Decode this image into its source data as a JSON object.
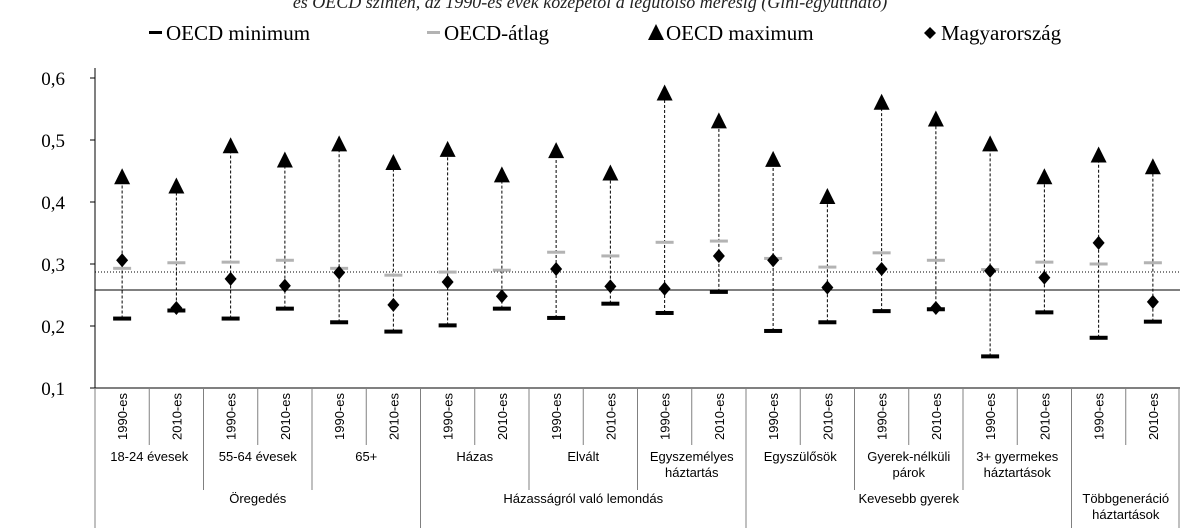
{
  "subtitle": "és OECD szinten, az 1990-es évek közepétől a legutolsó mérésig (Gini-együttható)",
  "legend": {
    "min": "OECD minimum",
    "avg": "OECD-átlag",
    "max": "OECD maximum",
    "hu": "Magyarország"
  },
  "colors": {
    "min": "#000000",
    "avg": "#b3b3b3",
    "max": "#000000",
    "hu": "#000000",
    "hu_ref_line": "#000000",
    "avg_ref_line": "#000000"
  },
  "chart_data": {
    "type": "scatter",
    "ylim": [
      0.1,
      0.6
    ],
    "yticks": [
      "0,1",
      "0,2",
      "0,3",
      "0,4",
      "0,5",
      "0,6"
    ],
    "reference_lines": {
      "hungary_latest": 0.258,
      "oecd_avg_latest": 0.287
    },
    "x": [
      "1990-es",
      "2010-es",
      "1990-es",
      "2010-es",
      "1990-es",
      "2010-es",
      "1990-es",
      "2010-es",
      "1990-es",
      "2010-es",
      "1990-es",
      "2010-es",
      "1990-es",
      "2010-es",
      "1990-es",
      "2010-es",
      "1990-es",
      "2010-es",
      "1990-es",
      "2010-es"
    ],
    "subgroups": [
      {
        "label": [
          "18-24 évesek"
        ],
        "span": 2
      },
      {
        "label": [
          "55-64 évesek"
        ],
        "span": 2
      },
      {
        "label": [
          "65+"
        ],
        "span": 2
      },
      {
        "label": [
          "Házas"
        ],
        "span": 2
      },
      {
        "label": [
          "Elvált"
        ],
        "span": 2
      },
      {
        "label": [
          "Egyszemélyes",
          "háztartás"
        ],
        "span": 2
      },
      {
        "label": [
          "Egyszülősök"
        ],
        "span": 2
      },
      {
        "label": [
          "Gyerek-nélküli",
          "párok"
        ],
        "span": 2
      },
      {
        "label": [
          "3+ gyermekes",
          "háztartások"
        ],
        "span": 2
      },
      {
        "label": [],
        "span": 2
      }
    ],
    "groups": [
      {
        "label": [
          "Öregedés"
        ],
        "span": 6
      },
      {
        "label": [
          "Házasságról való lemondás"
        ],
        "span": 6
      },
      {
        "label": [
          "Kevesebb gyerek"
        ],
        "span": 6
      },
      {
        "label": [
          "Többgeneráció",
          "háztartások"
        ],
        "span": 2
      }
    ],
    "series": [
      {
        "name": "OECD minimum",
        "values": [
          0.212,
          0.225,
          0.212,
          0.228,
          0.206,
          0.191,
          0.201,
          0.228,
          0.213,
          0.236,
          0.221,
          0.255,
          0.192,
          0.206,
          0.224,
          0.227,
          0.151,
          0.222,
          0.181,
          0.207
        ]
      },
      {
        "name": "OECD-átlag",
        "values": [
          0.293,
          0.302,
          0.303,
          0.306,
          0.293,
          0.282,
          0.287,
          0.29,
          0.319,
          0.313,
          0.335,
          0.337,
          0.309,
          0.295,
          0.318,
          0.306,
          0.291,
          0.303,
          0.3,
          0.302
        ]
      },
      {
        "name": "OECD maximum",
        "values": [
          0.44,
          0.425,
          0.49,
          0.467,
          0.493,
          0.463,
          0.484,
          0.443,
          0.482,
          0.446,
          0.575,
          0.53,
          0.468,
          0.408,
          0.56,
          0.533,
          0.493,
          0.44,
          0.475,
          0.456
        ]
      },
      {
        "name": "Magyarország",
        "values": [
          0.306,
          0.229,
          0.276,
          0.265,
          0.286,
          0.234,
          0.271,
          0.248,
          0.292,
          0.264,
          0.26,
          0.313,
          0.306,
          0.262,
          0.292,
          0.229,
          0.289,
          0.278,
          0.334,
          0.239
        ]
      }
    ]
  }
}
